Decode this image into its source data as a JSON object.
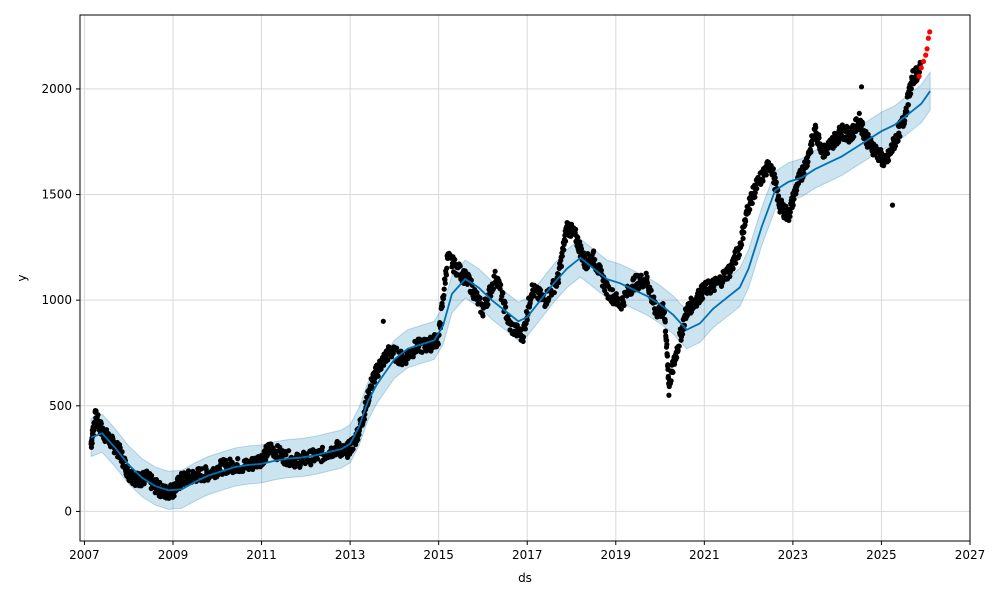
{
  "chart_data": {
    "type": "scatter",
    "title": "",
    "xlabel": "ds",
    "ylabel": "y",
    "xlim": [
      2006.9,
      2027.0
    ],
    "ylim": [
      -140,
      2350
    ],
    "grid": true,
    "x_ticks": [
      2007,
      2009,
      2011,
      2013,
      2015,
      2017,
      2019,
      2021,
      2023,
      2025,
      2027
    ],
    "x_tick_labels": [
      "2007",
      "2009",
      "2011",
      "2013",
      "2015",
      "2017",
      "2019",
      "2021",
      "2023",
      "2025",
      "2027"
    ],
    "y_ticks": [
      0,
      500,
      1000,
      1500,
      2000
    ],
    "y_tick_labels": [
      "0",
      "500",
      "1000",
      "1500",
      "2000"
    ],
    "colors": {
      "observed": "#000000",
      "forecast_points": "#ff0000",
      "trend_line": "#0072b2",
      "interval_fill": "#0072b2",
      "grid": "#d9d9d9"
    },
    "forecast_line": {
      "x": [
        2007.15,
        2007.4,
        2007.7,
        2008.0,
        2008.3,
        2008.6,
        2008.9,
        2009.2,
        2009.5,
        2009.8,
        2010.1,
        2010.4,
        2010.7,
        2011.0,
        2011.3,
        2011.6,
        2011.9,
        2012.2,
        2012.5,
        2012.8,
        2013.0,
        2013.2,
        2013.4,
        2013.6,
        2013.8,
        2014.0,
        2014.3,
        2014.6,
        2014.9,
        2015.1,
        2015.3,
        2015.6,
        2015.9,
        2016.2,
        2016.5,
        2016.8,
        2017.0,
        2017.3,
        2017.6,
        2017.9,
        2018.2,
        2018.5,
        2018.8,
        2019.1,
        2019.4,
        2019.7,
        2020.0,
        2020.3,
        2020.6,
        2020.9,
        2021.2,
        2021.5,
        2021.8,
        2022.0,
        2022.3,
        2022.6,
        2022.9,
        2023.2,
        2023.5,
        2023.8,
        2024.1,
        2024.4,
        2024.7,
        2025.0,
        2025.3,
        2025.6,
        2025.9,
        2026.1
      ],
      "y": [
        350,
        370,
        300,
        220,
        160,
        120,
        100,
        105,
        140,
        170,
        190,
        210,
        220,
        225,
        240,
        250,
        255,
        265,
        280,
        295,
        320,
        400,
        520,
        600,
        660,
        720,
        770,
        790,
        810,
        880,
        1030,
        1100,
        1060,
        1000,
        950,
        900,
        920,
        1000,
        1080,
        1150,
        1200,
        1150,
        1100,
        1080,
        1050,
        1020,
        980,
        930,
        860,
        890,
        960,
        1010,
        1060,
        1150,
        1350,
        1520,
        1560,
        1580,
        1620,
        1650,
        1680,
        1720,
        1760,
        1800,
        1830,
        1880,
        1930,
        1990
      ]
    },
    "observed_summary": {
      "x": [
        2007.15,
        2007.25,
        2007.4,
        2007.6,
        2007.8,
        2008.0,
        2008.2,
        2008.4,
        2008.6,
        2008.8,
        2009.0,
        2009.2,
        2009.5,
        2009.8,
        2010.1,
        2010.4,
        2010.7,
        2011.0,
        2011.2,
        2011.5,
        2011.8,
        2012.1,
        2012.4,
        2012.7,
        2012.9,
        2013.1,
        2013.3,
        2013.5,
        2013.7,
        2013.9,
        2014.2,
        2014.5,
        2014.8,
        2015.0,
        2015.2,
        2015.5,
        2015.7,
        2016.0,
        2016.3,
        2016.6,
        2016.9,
        2017.1,
        2017.4,
        2017.7,
        2017.9,
        2018.1,
        2018.3,
        2018.5,
        2018.8,
        2019.1,
        2019.4,
        2019.7,
        2019.9,
        2020.1,
        2020.2,
        2020.4,
        2020.6,
        2020.8,
        2021.0,
        2021.3,
        2021.6,
        2021.8,
        2022.0,
        2022.2,
        2022.5,
        2022.7,
        2022.9,
        2023.1,
        2023.3,
        2023.5,
        2023.7,
        2023.9,
        2024.1,
        2024.3,
        2024.5,
        2024.7,
        2024.9,
        2025.1,
        2025.3,
        2025.5,
        2025.7,
        2025.9
      ],
      "y": [
        320,
        450,
        380,
        330,
        280,
        180,
        150,
        160,
        120,
        90,
        100,
        150,
        170,
        180,
        210,
        220,
        215,
        250,
        300,
        260,
        240,
        255,
        270,
        300,
        280,
        330,
        450,
        620,
        700,
        760,
        720,
        780,
        790,
        820,
        1200,
        1130,
        1080,
        950,
        1120,
        880,
        830,
        1050,
        1000,
        1100,
        1350,
        1300,
        1180,
        1200,
        1050,
        980,
        1080,
        1100,
        950,
        950,
        600,
        780,
        950,
        1000,
        1050,
        1080,
        1150,
        1250,
        1450,
        1550,
        1650,
        1450,
        1400,
        1550,
        1650,
        1800,
        1700,
        1750,
        1800,
        1780,
        1850,
        1750,
        1700,
        1650,
        1750,
        1850,
        2050,
        2100
      ]
    },
    "future_forecast_points": {
      "x": [
        2025.85,
        2025.9,
        2025.95,
        2026.0,
        2026.03,
        2026.06,
        2026.09
      ],
      "y": [
        2060,
        2100,
        2130,
        2160,
        2190,
        2240,
        2270
      ]
    }
  }
}
